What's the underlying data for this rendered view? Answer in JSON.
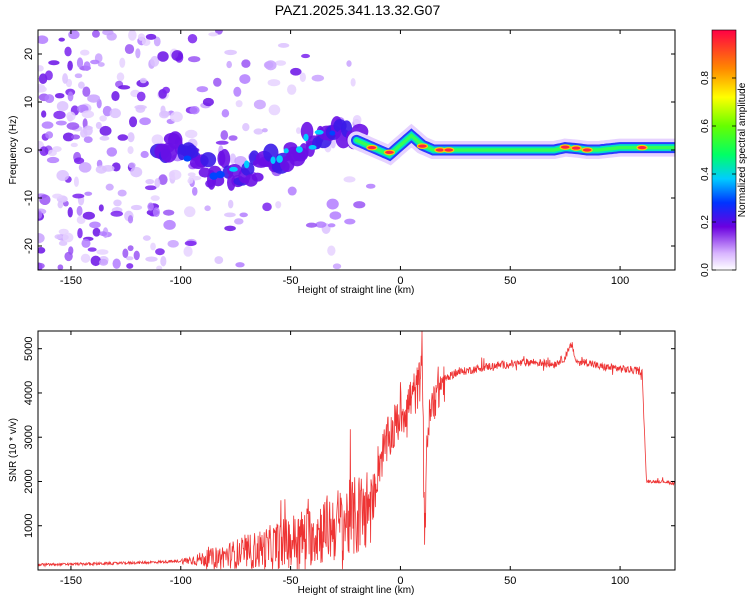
{
  "title": "PAZ1.2025.341.13.32.G07",
  "colors": {
    "snr_line": "#ee3333",
    "frame": "#000000",
    "spectro_bg": "#ffffff"
  },
  "chart_data": [
    {
      "type": "heatmap",
      "title": "PAZ1.2025.341.13.32.G07",
      "xlabel": "Height of straight line (km)",
      "ylabel": "Frequency (Hz)",
      "xlim": [
        -165,
        125
      ],
      "ylim": [
        -25,
        25
      ],
      "xticks": [
        -150,
        -100,
        -50,
        0,
        50,
        100
      ],
      "xtick_labels": [
        "-150",
        "-100",
        "-50",
        "0",
        "50",
        "100"
      ],
      "yticks": [
        -20,
        -10,
        0,
        10,
        20
      ],
      "ytick_labels": [
        "-20",
        "-10",
        "0",
        "10",
        "20"
      ],
      "ridge": {
        "x": [
          -108,
          -100,
          -95,
          -90,
          -85,
          -80,
          -75,
          -70,
          -65,
          -60,
          -55,
          -50,
          -45,
          -40,
          -35,
          -30,
          -25,
          -20,
          -15,
          -10,
          -5,
          0,
          5,
          10,
          15,
          20,
          30,
          40,
          50,
          60,
          70,
          75,
          80,
          85,
          90,
          100,
          110,
          120,
          125
        ],
        "freq": [
          1,
          0,
          -1,
          -3,
          -4,
          -4,
          -5,
          -4,
          -4,
          -3,
          -2,
          -1,
          1,
          2,
          3,
          4,
          3,
          2,
          1,
          0,
          -1,
          1,
          3,
          1,
          0,
          0,
          0,
          0,
          0,
          0,
          0,
          0.5,
          0.3,
          0,
          0,
          0.5,
          0.5,
          0.5,
          0.5
        ]
      },
      "colorbar": {
        "label": "Normalized spectral amplitude",
        "range": [
          0,
          1
        ],
        "ticks": [
          0.0,
          0.2,
          0.4,
          0.6,
          0.8
        ],
        "tick_labels": [
          "0.0",
          "0.2",
          "0.4",
          "0.6",
          "0.8"
        ]
      }
    },
    {
      "type": "line",
      "xlabel": "Height of straight line (km)",
      "ylabel": "SNR (10 * v/v)",
      "xlim": [
        -165,
        125
      ],
      "ylim": [
        0,
        5400
      ],
      "xticks": [
        -150,
        -100,
        -50,
        0,
        50,
        100
      ],
      "xtick_labels": [
        "-150",
        "-100",
        "-50",
        "0",
        "50",
        "100"
      ],
      "yticks": [
        1000,
        2000,
        3000,
        4000,
        5000
      ],
      "ytick_labels": [
        "1000",
        "2000",
        "3000",
        "4000",
        "5000"
      ],
      "series": [
        {
          "name": "SNR",
          "x": [
            -165,
            -150,
            -130,
            -110,
            -100,
            -90,
            -80,
            -70,
            -60,
            -50,
            -40,
            -30,
            -20,
            -15,
            -12,
            -10,
            -5,
            0,
            3,
            5,
            8,
            10,
            11,
            12,
            15,
            20,
            25,
            30,
            40,
            50,
            60,
            70,
            75,
            78,
            80,
            85,
            90,
            100,
            108,
            110,
            112,
            115,
            120,
            125
          ],
          "values": [
            120,
            130,
            150,
            180,
            200,
            250,
            320,
            400,
            500,
            650,
            800,
            1000,
            1200,
            1400,
            1700,
            2400,
            3000,
            3500,
            3700,
            3900,
            4100,
            4700,
            400,
            3000,
            3900,
            4300,
            4450,
            4500,
            4600,
            4650,
            4700,
            4650,
            4800,
            5100,
            4700,
            4700,
            4600,
            4550,
            4500,
            4500,
            2000,
            2000,
            2000,
            1950
          ]
        }
      ]
    }
  ]
}
